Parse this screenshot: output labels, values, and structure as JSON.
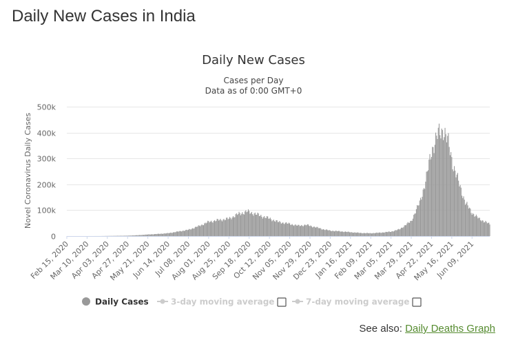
{
  "page": {
    "title": "Daily New Cases in India"
  },
  "see_also": {
    "prefix": "See also:",
    "link_label": "Daily Deaths Graph"
  },
  "colors": {
    "bars": "#999999",
    "inactive_legend": "#cccccc",
    "grid": "#e6e6e6",
    "text": "#333333",
    "link": "#558b2f"
  },
  "chart_data": {
    "type": "bar",
    "title": "Daily New Cases",
    "subtitle_lines": [
      "Cases per Day",
      "Data as of 0:00 GMT+0"
    ],
    "ylabel": "Novel Coronavirus Daily Cases",
    "xlabel": "",
    "ylim": [
      0,
      500000
    ],
    "yticks": [
      0,
      100000,
      200000,
      300000,
      400000,
      500000
    ],
    "ytick_labels": [
      "0",
      "100k",
      "200k",
      "300k",
      "400k",
      "500k"
    ],
    "x_range": [
      "2020-02-15",
      "2021-06-30"
    ],
    "xtick_labels": [
      "Feb 15, 2020",
      "Mar 10, 2020",
      "Apr 03, 2020",
      "Apr 27, 2020",
      "May 21, 2020",
      "Jun 14, 2020",
      "Jul 08, 2020",
      "Aug 01, 2020",
      "Aug 25, 2020",
      "Sep 18, 2020",
      "Oct 12, 2020",
      "Nov 05, 2020",
      "Nov 29, 2020",
      "Dec 23, 2020",
      "Jan 16, 2021",
      "Feb 09, 2021",
      "Mar 05, 2021",
      "Mar 29, 2021",
      "Apr 22, 2021",
      "May 16, 2021",
      "Jun 09, 2021"
    ],
    "xtick_dates": [
      "2020-02-15",
      "2020-03-10",
      "2020-04-03",
      "2020-04-27",
      "2020-05-21",
      "2020-06-14",
      "2020-07-08",
      "2020-08-01",
      "2020-08-25",
      "2020-09-18",
      "2020-10-12",
      "2020-11-05",
      "2020-11-29",
      "2020-12-23",
      "2021-01-16",
      "2021-02-09",
      "2021-03-05",
      "2021-03-29",
      "2021-04-22",
      "2021-05-16",
      "2021-06-09"
    ],
    "series": [
      {
        "name": "Daily Cases",
        "points": [
          [
            "2020-02-15",
            0
          ],
          [
            "2020-03-10",
            10
          ],
          [
            "2020-03-25",
            100
          ],
          [
            "2020-04-03",
            500
          ],
          [
            "2020-04-15",
            1000
          ],
          [
            "2020-04-27",
            1500
          ],
          [
            "2020-05-10",
            3500
          ],
          [
            "2020-05-21",
            6000
          ],
          [
            "2020-06-01",
            8000
          ],
          [
            "2020-06-14",
            11000
          ],
          [
            "2020-06-25",
            17000
          ],
          [
            "2020-07-08",
            24000
          ],
          [
            "2020-07-20",
            38000
          ],
          [
            "2020-08-01",
            55000
          ],
          [
            "2020-08-13",
            62000
          ],
          [
            "2020-08-25",
            67000
          ],
          [
            "2020-09-05",
            85000
          ],
          [
            "2020-09-16",
            95000
          ],
          [
            "2020-09-25",
            86000
          ],
          [
            "2020-10-05",
            75000
          ],
          [
            "2020-10-12",
            68000
          ],
          [
            "2020-10-22",
            55000
          ],
          [
            "2020-11-05",
            47000
          ],
          [
            "2020-11-15",
            40000
          ],
          [
            "2020-11-25",
            43000
          ],
          [
            "2020-12-05",
            35000
          ],
          [
            "2020-12-15",
            26000
          ],
          [
            "2020-12-23",
            21000
          ],
          [
            "2021-01-05",
            18000
          ],
          [
            "2021-01-16",
            15000
          ],
          [
            "2021-01-28",
            12000
          ],
          [
            "2021-02-09",
            11000
          ],
          [
            "2021-02-20",
            13000
          ],
          [
            "2021-03-05",
            17000
          ],
          [
            "2021-03-15",
            26000
          ],
          [
            "2021-03-29",
            58000
          ],
          [
            "2021-04-08",
            130000
          ],
          [
            "2021-04-15",
            210000
          ],
          [
            "2021-04-22",
            330000
          ],
          [
            "2021-04-30",
            395000
          ],
          [
            "2021-05-06",
            412000
          ],
          [
            "2021-05-12",
            360000
          ],
          [
            "2021-05-18",
            270000
          ],
          [
            "2021-05-25",
            200000
          ],
          [
            "2021-06-01",
            130000
          ],
          [
            "2021-06-09",
            90000
          ],
          [
            "2021-06-18",
            65000
          ],
          [
            "2021-06-25",
            55000
          ],
          [
            "2021-06-30",
            45000
          ]
        ]
      }
    ],
    "legend": {
      "placement": "bottom",
      "items": [
        {
          "label": "Daily Cases",
          "active": true,
          "has_checkbox": false
        },
        {
          "label": "3-day moving average",
          "active": false,
          "has_checkbox": true
        },
        {
          "label": "7-day moving average",
          "active": false,
          "has_checkbox": true
        }
      ]
    },
    "grid": true
  }
}
